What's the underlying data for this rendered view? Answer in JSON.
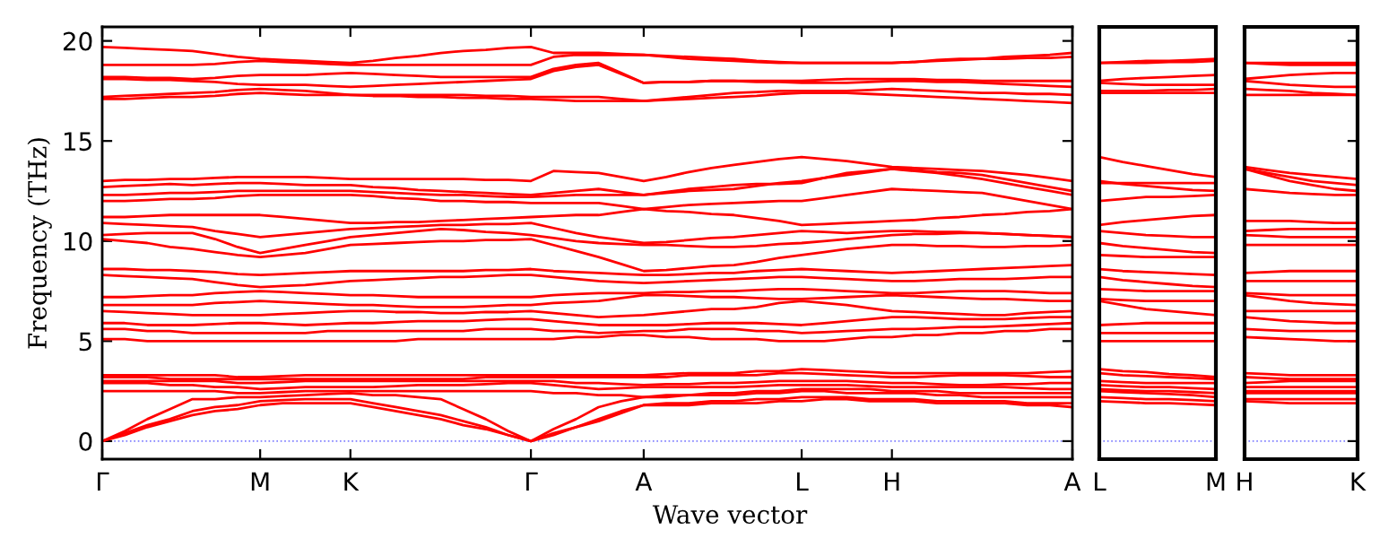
{
  "chart_data": [
    {
      "type": "line",
      "ylabel": "Frequency (THz)",
      "xlabel": "Wave vector",
      "categories": [
        "Γ",
        null,
        null,
        null,
        null,
        null,
        null,
        "M",
        null,
        null,
        null,
        "K",
        null,
        null,
        null,
        null,
        null,
        null,
        null,
        "Γ",
        null,
        null,
        null,
        null,
        "A",
        null,
        null,
        null,
        null,
        null,
        null,
        "L",
        null,
        null,
        null,
        "H",
        null,
        null,
        null,
        null,
        null,
        null,
        null,
        "A"
      ],
      "ylim": [
        -0.9,
        20.7
      ],
      "yticks": [
        0,
        5,
        10,
        15,
        20
      ],
      "grid": false,
      "legend": false,
      "marker": "none",
      "line_style": "solid",
      "ref_lines": [
        {
          "axis": "y",
          "value": 0,
          "color": "#8080ff",
          "line_style": "dotted"
        }
      ],
      "series": [
        {
          "color": "#ff0000",
          "values": [
            0,
            0.3,
            0.7,
            1.0,
            1.3,
            1.5,
            1.6,
            1.8,
            1.9,
            1.9,
            1.9,
            1.9,
            1.7,
            1.5,
            1.3,
            1.1,
            0.8,
            0.6,
            0.3,
            0,
            0.3,
            0.7,
            1.0,
            1.4,
            1.8,
            1.8,
            1.8,
            1.9,
            1.9,
            1.9,
            2.0,
            2.0,
            2.1,
            2.1,
            2.0,
            2.0,
            2.0,
            1.9,
            1.9,
            1.9,
            1.9,
            1.8,
            1.8,
            1.7
          ]
        },
        {
          "color": "#ff0000",
          "values": [
            0,
            0.4,
            0.8,
            1.1,
            1.5,
            1.7,
            1.8,
            2.0,
            2.05,
            2.1,
            2.1,
            2.1,
            1.9,
            1.7,
            1.5,
            1.3,
            1.0,
            0.7,
            0.3,
            0,
            0.4,
            0.7,
            1.1,
            1.5,
            1.8,
            1.9,
            1.9,
            2.0,
            2.0,
            2.1,
            2.1,
            2.2,
            2.2,
            2.2,
            2.1,
            2.1,
            2.1,
            2.0,
            2.0,
            2.0,
            2.0,
            1.9,
            1.9,
            1.9
          ]
        },
        {
          "color": "#ff0000",
          "values": [
            0,
            0.5,
            1.1,
            1.6,
            2.1,
            2.1,
            2.2,
            2.2,
            2.25,
            2.3,
            2.35,
            2.4,
            2.3,
            2.3,
            2.2,
            2.1,
            1.6,
            1.1,
            0.5,
            0,
            0.6,
            1.1,
            1.7,
            2.0,
            2.2,
            2.2,
            2.3,
            2.3,
            2.3,
            2.4,
            2.4,
            2.5,
            2.5,
            2.4,
            2.4,
            2.4,
            2.4,
            2.3,
            2.3,
            2.2,
            2.2,
            2.2,
            2.2,
            2.2
          ]
        },
        {
          "color": "#ff0000",
          "values": [
            2.5,
            2.5,
            2.5,
            2.5,
            2.5,
            2.5,
            2.4,
            2.4,
            2.45,
            2.5,
            2.5,
            2.5,
            2.5,
            2.5,
            2.5,
            2.5,
            2.5,
            2.5,
            2.5,
            2.5,
            2.4,
            2.4,
            2.3,
            2.3,
            2.2,
            2.3,
            2.3,
            2.4,
            2.4,
            2.5,
            2.5,
            2.6,
            2.6,
            2.6,
            2.6,
            2.5,
            2.5,
            2.5,
            2.4,
            2.4,
            2.4,
            2.4,
            2.4,
            2.4
          ]
        },
        {
          "color": "#ff0000",
          "values": [
            2.9,
            2.9,
            2.9,
            2.8,
            2.8,
            2.7,
            2.7,
            2.6,
            2.65,
            2.7,
            2.7,
            2.7,
            2.7,
            2.75,
            2.8,
            2.8,
            2.8,
            2.85,
            2.9,
            2.9,
            2.8,
            2.7,
            2.6,
            2.65,
            2.7,
            2.7,
            2.7,
            2.7,
            2.7,
            2.75,
            2.8,
            2.8,
            2.8,
            2.8,
            2.75,
            2.7,
            2.7,
            2.7,
            2.7,
            2.7,
            2.7,
            2.65,
            2.6,
            2.6
          ]
        },
        {
          "color": "#ff0000",
          "values": [
            3.0,
            3.0,
            3.0,
            3.0,
            3.0,
            3.0,
            2.9,
            2.9,
            2.95,
            3.0,
            3.0,
            3.0,
            3.0,
            3.0,
            3.0,
            3.0,
            3.0,
            3.0,
            3.0,
            3.0,
            3.0,
            2.9,
            2.9,
            2.85,
            2.8,
            2.85,
            2.85,
            2.9,
            2.9,
            2.95,
            3.0,
            3.0,
            3.0,
            3.0,
            2.95,
            2.9,
            2.9,
            2.85,
            2.8,
            2.8,
            2.85,
            2.85,
            2.9,
            2.9
          ]
        },
        {
          "color": "#ff0000",
          "values": [
            3.2,
            3.2,
            3.2,
            3.1,
            3.1,
            3.1,
            3.1,
            3.1,
            3.1,
            3.1,
            3.1,
            3.1,
            3.1,
            3.1,
            3.1,
            3.1,
            3.1,
            3.2,
            3.2,
            3.2,
            3.2,
            3.2,
            3.2,
            3.2,
            3.2,
            3.2,
            3.3,
            3.3,
            3.3,
            3.3,
            3.4,
            3.4,
            3.35,
            3.3,
            3.25,
            3.2,
            3.2,
            3.25,
            3.3,
            3.3,
            3.3,
            3.25,
            3.2,
            3.2
          ]
        },
        {
          "color": "#ff0000",
          "values": [
            3.3,
            3.3,
            3.3,
            3.3,
            3.3,
            3.3,
            3.2,
            3.2,
            3.25,
            3.3,
            3.3,
            3.3,
            3.3,
            3.3,
            3.3,
            3.3,
            3.3,
            3.3,
            3.3,
            3.3,
            3.3,
            3.3,
            3.3,
            3.3,
            3.3,
            3.35,
            3.4,
            3.4,
            3.4,
            3.5,
            3.5,
            3.6,
            3.55,
            3.5,
            3.45,
            3.4,
            3.4,
            3.4,
            3.4,
            3.4,
            3.4,
            3.4,
            3.45,
            3.5
          ]
        },
        {
          "color": "#ff0000",
          "values": [
            5.1,
            5.1,
            5.0,
            5.0,
            5.0,
            5.0,
            5.0,
            5.0,
            5.0,
            5.0,
            5.0,
            5.0,
            5.0,
            5.0,
            5.1,
            5.1,
            5.1,
            5.1,
            5.1,
            5.1,
            5.1,
            5.2,
            5.2,
            5.3,
            5.3,
            5.2,
            5.2,
            5.1,
            5.1,
            5.1,
            5.0,
            5.0,
            5.0,
            5.1,
            5.2,
            5.2,
            5.3,
            5.3,
            5.4,
            5.4,
            5.5,
            5.5,
            5.6,
            5.6
          ]
        },
        {
          "color": "#ff0000",
          "values": [
            5.6,
            5.6,
            5.5,
            5.5,
            5.4,
            5.4,
            5.4,
            5.4,
            5.4,
            5.4,
            5.5,
            5.5,
            5.5,
            5.5,
            5.5,
            5.5,
            5.5,
            5.6,
            5.6,
            5.6,
            5.5,
            5.5,
            5.4,
            5.45,
            5.5,
            5.5,
            5.6,
            5.6,
            5.6,
            5.5,
            5.5,
            5.4,
            5.45,
            5.5,
            5.55,
            5.6,
            5.6,
            5.65,
            5.7,
            5.7,
            5.75,
            5.8,
            5.85,
            5.9
          ]
        },
        {
          "color": "#ff0000",
          "values": [
            5.9,
            5.9,
            5.8,
            5.8,
            5.8,
            5.85,
            5.9,
            5.9,
            5.85,
            5.8,
            5.85,
            5.9,
            5.9,
            5.95,
            6.0,
            6.0,
            6.0,
            6.05,
            6.1,
            6.1,
            6.0,
            5.9,
            5.8,
            5.8,
            5.8,
            5.8,
            5.85,
            5.9,
            5.9,
            5.9,
            5.85,
            5.8,
            5.9,
            6.0,
            6.1,
            6.2,
            6.2,
            6.15,
            6.1,
            6.1,
            6.1,
            6.15,
            6.2,
            6.2
          ]
        },
        {
          "color": "#ff0000",
          "values": [
            6.5,
            6.45,
            6.4,
            6.35,
            6.3,
            6.3,
            6.3,
            6.3,
            6.35,
            6.4,
            6.45,
            6.5,
            6.5,
            6.45,
            6.45,
            6.4,
            6.4,
            6.45,
            6.45,
            6.5,
            6.4,
            6.3,
            6.2,
            6.25,
            6.3,
            6.4,
            6.5,
            6.6,
            6.6,
            6.7,
            6.9,
            7.0,
            6.9,
            6.8,
            6.65,
            6.5,
            6.45,
            6.4,
            6.35,
            6.3,
            6.3,
            6.4,
            6.45,
            6.5
          ]
        },
        {
          "color": "#ff0000",
          "values": [
            6.8,
            6.8,
            6.8,
            6.8,
            6.8,
            6.9,
            6.95,
            7.0,
            6.95,
            6.9,
            6.85,
            6.8,
            6.8,
            6.75,
            6.7,
            6.7,
            6.7,
            6.75,
            6.8,
            6.8,
            6.9,
            6.95,
            7.0,
            7.15,
            7.3,
            7.3,
            7.25,
            7.2,
            7.2,
            7.15,
            7.1,
            7.1,
            7.15,
            7.2,
            7.25,
            7.3,
            7.25,
            7.2,
            7.15,
            7.1,
            7.1,
            7.05,
            7.0,
            7.0
          ]
        },
        {
          "color": "#ff0000",
          "values": [
            7.2,
            7.2,
            7.25,
            7.3,
            7.3,
            7.4,
            7.45,
            7.5,
            7.45,
            7.4,
            7.35,
            7.3,
            7.3,
            7.25,
            7.2,
            7.2,
            7.2,
            7.2,
            7.2,
            7.2,
            7.3,
            7.35,
            7.4,
            7.4,
            7.4,
            7.45,
            7.45,
            7.5,
            7.5,
            7.55,
            7.6,
            7.6,
            7.55,
            7.5,
            7.45,
            7.4,
            7.4,
            7.45,
            7.5,
            7.5,
            7.5,
            7.45,
            7.4,
            7.4
          ]
        },
        {
          "color": "#ff0000",
          "values": [
            8.3,
            8.25,
            8.2,
            8.15,
            8.1,
            7.95,
            7.8,
            7.7,
            7.75,
            7.8,
            7.9,
            8.0,
            8.05,
            8.1,
            8.15,
            8.2,
            8.2,
            8.25,
            8.3,
            8.3,
            8.2,
            8.1,
            8.0,
            7.95,
            7.9,
            7.95,
            8.0,
            8.05,
            8.1,
            8.15,
            8.2,
            8.2,
            8.15,
            8.1,
            8.05,
            8.0,
            8.0,
            8.05,
            8.1,
            8.1,
            8.1,
            8.15,
            8.2,
            8.2
          ]
        },
        {
          "color": "#ff0000",
          "values": [
            8.6,
            8.6,
            8.55,
            8.55,
            8.5,
            8.45,
            8.35,
            8.3,
            8.35,
            8.4,
            8.45,
            8.5,
            8.5,
            8.5,
            8.5,
            8.5,
            8.5,
            8.55,
            8.55,
            8.6,
            8.5,
            8.45,
            8.4,
            8.35,
            8.3,
            8.3,
            8.35,
            8.4,
            8.4,
            8.5,
            8.55,
            8.6,
            8.55,
            8.5,
            8.45,
            8.4,
            8.45,
            8.5,
            8.55,
            8.6,
            8.65,
            8.7,
            8.75,
            8.8
          ]
        },
        {
          "color": "#ff0000",
          "values": [
            10.1,
            10.0,
            9.9,
            9.7,
            9.6,
            9.45,
            9.3,
            9.2,
            9.3,
            9.4,
            9.6,
            9.8,
            9.85,
            9.9,
            9.95,
            10.0,
            10.0,
            10.05,
            10.05,
            10.1,
            9.8,
            9.5,
            9.2,
            8.85,
            8.5,
            8.55,
            8.65,
            8.75,
            8.8,
            8.95,
            9.15,
            9.3,
            9.45,
            9.6,
            9.7,
            9.8,
            9.8,
            9.75,
            9.75,
            9.7,
            9.7,
            9.75,
            9.75,
            9.8
          ]
        },
        {
          "color": "#ff0000",
          "values": [
            10.3,
            10.35,
            10.4,
            10.4,
            10.4,
            10.1,
            9.7,
            9.4,
            9.6,
            9.8,
            10.0,
            10.2,
            10.3,
            10.4,
            10.5,
            10.6,
            10.55,
            10.45,
            10.4,
            10.3,
            10.15,
            10.0,
            9.9,
            9.85,
            9.8,
            9.8,
            9.75,
            9.7,
            9.7,
            9.75,
            9.85,
            9.9,
            10.0,
            10.1,
            10.2,
            10.3,
            10.35,
            10.35,
            10.4,
            10.4,
            10.35,
            10.3,
            10.25,
            10.2
          ]
        },
        {
          "color": "#ff0000",
          "values": [
            10.9,
            10.85,
            10.8,
            10.75,
            10.7,
            10.5,
            10.35,
            10.2,
            10.3,
            10.4,
            10.5,
            10.6,
            10.65,
            10.7,
            10.75,
            10.8,
            10.8,
            10.85,
            10.85,
            10.9,
            10.65,
            10.4,
            10.2,
            10.05,
            9.9,
            9.95,
            10.05,
            10.15,
            10.2,
            10.3,
            10.4,
            10.5,
            10.45,
            10.4,
            10.45,
            10.5,
            10.5,
            10.45,
            10.45,
            10.4,
            10.35,
            10.3,
            10.25,
            10.2
          ]
        },
        {
          "color": "#ff0000",
          "values": [
            11.2,
            11.2,
            11.25,
            11.3,
            11.3,
            11.3,
            11.3,
            11.3,
            11.2,
            11.1,
            11.0,
            10.9,
            10.9,
            10.95,
            10.95,
            11.0,
            11.05,
            11.1,
            11.15,
            11.2,
            11.25,
            11.3,
            11.3,
            11.45,
            11.6,
            11.5,
            11.45,
            11.35,
            11.3,
            11.15,
            11.0,
            10.8,
            10.85,
            10.9,
            10.95,
            11.0,
            11.05,
            11.15,
            11.2,
            11.3,
            11.35,
            11.45,
            11.5,
            11.6
          ]
        },
        {
          "color": "#ff0000",
          "values": [
            12.0,
            12.0,
            12.05,
            12.1,
            12.1,
            12.15,
            12.25,
            12.3,
            12.3,
            12.3,
            12.3,
            12.3,
            12.25,
            12.15,
            12.1,
            12.0,
            12.0,
            11.95,
            11.95,
            11.9,
            11.9,
            11.9,
            11.9,
            11.75,
            11.6,
            11.7,
            11.8,
            11.85,
            11.9,
            11.95,
            12.0,
            12.0,
            12.15,
            12.3,
            12.45,
            12.6,
            12.55,
            12.5,
            12.45,
            12.4,
            12.2,
            12.0,
            11.8,
            11.6
          ]
        },
        {
          "color": "#ff0000",
          "values": [
            12.3,
            12.3,
            12.35,
            12.4,
            12.4,
            12.45,
            12.5,
            12.5,
            12.5,
            12.5,
            12.5,
            12.5,
            12.45,
            12.4,
            12.35,
            12.3,
            12.3,
            12.25,
            12.2,
            12.2,
            12.25,
            12.3,
            12.3,
            12.3,
            12.3,
            12.4,
            12.5,
            12.55,
            12.6,
            12.75,
            12.9,
            13.0,
            13.15,
            13.3,
            13.45,
            13.6,
            13.5,
            13.4,
            13.25,
            13.1,
            12.9,
            12.7,
            12.5,
            12.3
          ]
        },
        {
          "color": "#ff0000",
          "values": [
            12.7,
            12.75,
            12.8,
            12.85,
            12.8,
            12.85,
            12.9,
            12.9,
            12.85,
            12.8,
            12.8,
            12.8,
            12.7,
            12.65,
            12.55,
            12.5,
            12.45,
            12.4,
            12.35,
            12.3,
            12.4,
            12.5,
            12.6,
            12.45,
            12.3,
            12.45,
            12.6,
            12.7,
            12.8,
            12.85,
            12.85,
            12.9,
            13.15,
            13.4,
            13.5,
            13.6,
            13.55,
            13.45,
            13.4,
            13.3,
            13.1,
            12.9,
            12.7,
            12.5
          ]
        },
        {
          "color": "#ff0000",
          "values": [
            13.0,
            13.05,
            13.05,
            13.1,
            13.1,
            13.15,
            13.2,
            13.2,
            13.2,
            13.2,
            13.15,
            13.1,
            13.1,
            13.1,
            13.1,
            13.1,
            13.1,
            13.05,
            13.05,
            13.0,
            13.5,
            13.45,
            13.4,
            13.2,
            13.0,
            13.2,
            13.45,
            13.65,
            13.8,
            13.95,
            14.1,
            14.2,
            14.1,
            14.0,
            13.85,
            13.7,
            13.65,
            13.6,
            13.55,
            13.5,
            13.4,
            13.3,
            13.15,
            13.0
          ]
        },
        {
          "color": "#ff0000",
          "values": [
            17.1,
            17.1,
            17.15,
            17.2,
            17.2,
            17.25,
            17.35,
            17.4,
            17.35,
            17.3,
            17.3,
            17.3,
            17.25,
            17.25,
            17.2,
            17.2,
            17.15,
            17.15,
            17.1,
            17.1,
            17.05,
            17.0,
            17.0,
            17.0,
            17.0,
            17.05,
            17.1,
            17.15,
            17.2,
            17.25,
            17.35,
            17.4,
            17.4,
            17.4,
            17.35,
            17.3,
            17.25,
            17.2,
            17.15,
            17.1,
            17.05,
            17.0,
            16.95,
            16.9
          ]
        },
        {
          "color": "#ff0000",
          "values": [
            17.2,
            17.25,
            17.3,
            17.35,
            17.4,
            17.45,
            17.55,
            17.6,
            17.55,
            17.5,
            17.4,
            17.3,
            17.3,
            17.3,
            17.3,
            17.3,
            17.3,
            17.25,
            17.25,
            17.2,
            17.2,
            17.2,
            17.2,
            17.1,
            17.0,
            17.1,
            17.2,
            17.3,
            17.4,
            17.45,
            17.5,
            17.5,
            17.5,
            17.5,
            17.55,
            17.6,
            17.55,
            17.5,
            17.45,
            17.4,
            17.4,
            17.35,
            17.35,
            17.3
          ]
        },
        {
          "color": "#ff0000",
          "values": [
            18.1,
            18.1,
            18.05,
            18.05,
            18.0,
            17.95,
            17.85,
            17.8,
            17.8,
            17.8,
            17.75,
            17.7,
            17.75,
            17.8,
            17.85,
            17.9,
            17.95,
            18.0,
            18.05,
            18.1,
            18.5,
            18.7,
            18.8,
            18.35,
            17.9,
            17.95,
            17.95,
            18.0,
            18.0,
            17.95,
            17.95,
            17.9,
            17.9,
            17.9,
            17.95,
            18.0,
            18.0,
            17.95,
            17.95,
            17.9,
            17.85,
            17.8,
            17.75,
            17.7
          ]
        },
        {
          "color": "#ff0000",
          "values": [
            18.2,
            18.2,
            18.15,
            18.15,
            18.1,
            18.15,
            18.25,
            18.3,
            18.3,
            18.3,
            18.35,
            18.4,
            18.35,
            18.3,
            18.25,
            18.2,
            18.2,
            18.2,
            18.2,
            18.2,
            18.6,
            18.8,
            18.9,
            18.4,
            17.9,
            17.95,
            17.95,
            18.0,
            18.0,
            18.0,
            18.0,
            18.0,
            18.05,
            18.1,
            18.1,
            18.1,
            18.1,
            18.05,
            18.05,
            18.0,
            18.0,
            18.0,
            18.0,
            18.0
          ]
        },
        {
          "color": "#ff0000",
          "values": [
            18.8,
            18.8,
            18.8,
            18.8,
            18.8,
            18.85,
            18.95,
            19.0,
            18.95,
            18.9,
            18.85,
            18.8,
            18.8,
            18.8,
            18.8,
            18.8,
            18.8,
            18.8,
            18.8,
            18.8,
            19.2,
            19.3,
            19.3,
            19.3,
            19.3,
            19.2,
            19.1,
            19.05,
            19.0,
            18.95,
            18.9,
            18.9,
            18.9,
            18.9,
            18.9,
            18.9,
            18.95,
            19.0,
            19.05,
            19.1,
            19.1,
            19.15,
            19.15,
            19.2
          ]
        },
        {
          "color": "#ff0000",
          "values": [
            19.7,
            19.65,
            19.6,
            19.55,
            19.5,
            19.35,
            19.2,
            19.1,
            19.05,
            19.0,
            18.95,
            18.9,
            19.0,
            19.15,
            19.25,
            19.4,
            19.5,
            19.55,
            19.65,
            19.7,
            19.4,
            19.4,
            19.4,
            19.35,
            19.3,
            19.25,
            19.2,
            19.15,
            19.1,
            19.0,
            18.95,
            18.9,
            18.9,
            18.9,
            18.9,
            18.9,
            18.95,
            19.05,
            19.1,
            19.1,
            19.2,
            19.25,
            19.3,
            19.4
          ]
        }
      ]
    },
    {
      "type": "line",
      "categories": [
        "L",
        null,
        null,
        null,
        null,
        "M"
      ],
      "ylim": [
        -0.9,
        20.7
      ],
      "yticks": [
        0,
        5,
        10,
        15,
        20
      ],
      "tick_labels": "x",
      "grid": false,
      "legend": false,
      "marker": "none",
      "line_style": "solid",
      "ref_lines": [
        {
          "axis": "y",
          "value": 0,
          "color": "#8080ff",
          "line_style": "dotted"
        }
      ],
      "series": [
        {
          "color": "#ff0000",
          "values": [
            2.0,
            1.95,
            1.9,
            1.9,
            1.85,
            1.8
          ]
        },
        {
          "color": "#ff0000",
          "values": [
            2.2,
            2.15,
            2.1,
            2.1,
            2.05,
            2.0
          ]
        },
        {
          "color": "#ff0000",
          "values": [
            2.5,
            2.45,
            2.4,
            2.35,
            2.3,
            2.2
          ]
        },
        {
          "color": "#ff0000",
          "values": [
            2.6,
            2.55,
            2.5,
            2.5,
            2.45,
            2.4
          ]
        },
        {
          "color": "#ff0000",
          "values": [
            2.8,
            2.75,
            2.7,
            2.7,
            2.65,
            2.6
          ]
        },
        {
          "color": "#ff0000",
          "values": [
            3.0,
            2.95,
            2.9,
            2.9,
            2.9,
            2.9
          ]
        },
        {
          "color": "#ff0000",
          "values": [
            3.4,
            3.3,
            3.25,
            3.2,
            3.15,
            3.1
          ]
        },
        {
          "color": "#ff0000",
          "values": [
            3.6,
            3.5,
            3.45,
            3.35,
            3.3,
            3.2
          ]
        },
        {
          "color": "#ff0000",
          "values": [
            5.0,
            5.0,
            5.0,
            5.0,
            5.0,
            5.0
          ]
        },
        {
          "color": "#ff0000",
          "values": [
            5.4,
            5.4,
            5.4,
            5.4,
            5.4,
            5.4
          ]
        },
        {
          "color": "#ff0000",
          "values": [
            5.8,
            5.85,
            5.9,
            5.9,
            5.9,
            5.9
          ]
        },
        {
          "color": "#ff0000",
          "values": [
            7.0,
            6.8,
            6.6,
            6.5,
            6.4,
            6.3
          ]
        },
        {
          "color": "#ff0000",
          "values": [
            7.1,
            7.05,
            7.0,
            7.0,
            7.0,
            7.0
          ]
        },
        {
          "color": "#ff0000",
          "values": [
            7.6,
            7.55,
            7.5,
            7.5,
            7.5,
            7.5
          ]
        },
        {
          "color": "#ff0000",
          "values": [
            8.2,
            8.05,
            7.95,
            7.85,
            7.75,
            7.7
          ]
        },
        {
          "color": "#ff0000",
          "values": [
            8.6,
            8.5,
            8.45,
            8.4,
            8.35,
            8.3
          ]
        },
        {
          "color": "#ff0000",
          "values": [
            9.3,
            9.25,
            9.2,
            9.2,
            9.2,
            9.2
          ]
        },
        {
          "color": "#ff0000",
          "values": [
            9.9,
            9.75,
            9.65,
            9.55,
            9.45,
            9.4
          ]
        },
        {
          "color": "#ff0000",
          "values": [
            10.5,
            10.4,
            10.3,
            10.25,
            10.2,
            10.2
          ]
        },
        {
          "color": "#ff0000",
          "values": [
            10.8,
            10.95,
            11.05,
            11.15,
            11.25,
            11.3
          ]
        },
        {
          "color": "#ff0000",
          "values": [
            12.0,
            12.1,
            12.2,
            12.2,
            12.25,
            12.3
          ]
        },
        {
          "color": "#ff0000",
          "values": [
            13.0,
            12.85,
            12.75,
            12.65,
            12.55,
            12.5
          ]
        },
        {
          "color": "#ff0000",
          "values": [
            12.9,
            12.9,
            12.9,
            12.9,
            12.9,
            12.9
          ]
        },
        {
          "color": "#ff0000",
          "values": [
            14.2,
            13.95,
            13.75,
            13.55,
            13.35,
            13.2
          ]
        },
        {
          "color": "#ff0000",
          "values": [
            17.4,
            17.4,
            17.4,
            17.4,
            17.4,
            17.4
          ]
        },
        {
          "color": "#ff0000",
          "values": [
            17.5,
            17.5,
            17.5,
            17.55,
            17.55,
            17.6
          ]
        },
        {
          "color": "#ff0000",
          "values": [
            17.9,
            17.85,
            17.8,
            17.8,
            17.8,
            17.8
          ]
        },
        {
          "color": "#ff0000",
          "values": [
            18.0,
            18.1,
            18.15,
            18.2,
            18.25,
            18.3
          ]
        },
        {
          "color": "#ff0000",
          "values": [
            18.9,
            18.9,
            18.9,
            18.95,
            18.95,
            19.0
          ]
        },
        {
          "color": "#ff0000",
          "values": [
            18.9,
            18.95,
            19.0,
            19.0,
            19.05,
            19.1
          ]
        }
      ]
    },
    {
      "type": "line",
      "categories": [
        "H",
        null,
        null,
        null,
        null,
        "K"
      ],
      "ylim": [
        -0.9,
        20.7
      ],
      "yticks": [
        0,
        5,
        10,
        15,
        20
      ],
      "tick_labels": "x",
      "grid": false,
      "legend": false,
      "marker": "none",
      "line_style": "solid",
      "ref_lines": [
        {
          "axis": "y",
          "value": 0,
          "color": "#8080ff",
          "line_style": "dotted"
        }
      ],
      "series": [
        {
          "color": "#ff0000",
          "values": [
            2.0,
            1.95,
            1.9,
            1.9,
            1.9,
            1.9
          ]
        },
        {
          "color": "#ff0000",
          "values": [
            2.1,
            2.1,
            2.1,
            2.1,
            2.1,
            2.1
          ]
        },
        {
          "color": "#ff0000",
          "values": [
            2.4,
            2.4,
            2.4,
            2.4,
            2.4,
            2.4
          ]
        },
        {
          "color": "#ff0000",
          "values": [
            2.5,
            2.5,
            2.5,
            2.5,
            2.5,
            2.5
          ]
        },
        {
          "color": "#ff0000",
          "values": [
            2.7,
            2.7,
            2.7,
            2.7,
            2.7,
            2.7
          ]
        },
        {
          "color": "#ff0000",
          "values": [
            2.9,
            2.95,
            3.0,
            3.0,
            3.0,
            3.0
          ]
        },
        {
          "color": "#ff0000",
          "values": [
            3.2,
            3.15,
            3.1,
            3.1,
            3.1,
            3.1
          ]
        },
        {
          "color": "#ff0000",
          "values": [
            3.4,
            3.35,
            3.3,
            3.3,
            3.3,
            3.3
          ]
        },
        {
          "color": "#ff0000",
          "values": [
            5.2,
            5.15,
            5.1,
            5.05,
            5.0,
            5.0
          ]
        },
        {
          "color": "#ff0000",
          "values": [
            5.6,
            5.55,
            5.5,
            5.5,
            5.5,
            5.5
          ]
        },
        {
          "color": "#ff0000",
          "values": [
            6.2,
            6.1,
            6.0,
            5.95,
            5.9,
            5.9
          ]
        },
        {
          "color": "#ff0000",
          "values": [
            6.5,
            6.5,
            6.5,
            6.5,
            6.5,
            6.5
          ]
        },
        {
          "color": "#ff0000",
          "values": [
            7.3,
            7.15,
            7.0,
            6.9,
            6.85,
            6.8
          ]
        },
        {
          "color": "#ff0000",
          "values": [
            7.4,
            7.35,
            7.3,
            7.3,
            7.3,
            7.3
          ]
        },
        {
          "color": "#ff0000",
          "values": [
            8.0,
            8.0,
            8.0,
            8.0,
            8.0,
            8.0
          ]
        },
        {
          "color": "#ff0000",
          "values": [
            8.4,
            8.45,
            8.5,
            8.5,
            8.5,
            8.5
          ]
        },
        {
          "color": "#ff0000",
          "values": [
            9.8,
            9.8,
            9.8,
            9.8,
            9.8,
            9.8
          ]
        },
        {
          "color": "#ff0000",
          "values": [
            10.3,
            10.25,
            10.2,
            10.2,
            10.2,
            10.2
          ]
        },
        {
          "color": "#ff0000",
          "values": [
            10.5,
            10.55,
            10.6,
            10.6,
            10.6,
            10.6
          ]
        },
        {
          "color": "#ff0000",
          "values": [
            11.0,
            11.0,
            11.0,
            10.95,
            10.9,
            10.9
          ]
        },
        {
          "color": "#ff0000",
          "values": [
            12.6,
            12.5,
            12.4,
            12.35,
            12.3,
            12.3
          ]
        },
        {
          "color": "#ff0000",
          "values": [
            13.6,
            13.3,
            13.0,
            12.8,
            12.6,
            12.5
          ]
        },
        {
          "color": "#ff0000",
          "values": [
            13.6,
            13.4,
            13.2,
            13.0,
            12.9,
            12.8
          ]
        },
        {
          "color": "#ff0000",
          "values": [
            13.7,
            13.55,
            13.4,
            13.3,
            13.2,
            13.1
          ]
        },
        {
          "color": "#ff0000",
          "values": [
            17.3,
            17.3,
            17.3,
            17.3,
            17.3,
            17.3
          ]
        },
        {
          "color": "#ff0000",
          "values": [
            17.6,
            17.55,
            17.5,
            17.4,
            17.35,
            17.3
          ]
        },
        {
          "color": "#ff0000",
          "values": [
            18.0,
            17.9,
            17.8,
            17.75,
            17.7,
            17.7
          ]
        },
        {
          "color": "#ff0000",
          "values": [
            18.1,
            18.2,
            18.3,
            18.35,
            18.4,
            18.4
          ]
        },
        {
          "color": "#ff0000",
          "values": [
            18.9,
            18.85,
            18.8,
            18.8,
            18.8,
            18.8
          ]
        },
        {
          "color": "#ff0000",
          "values": [
            18.9,
            18.9,
            18.9,
            18.9,
            18.9,
            18.9
          ]
        }
      ]
    }
  ]
}
